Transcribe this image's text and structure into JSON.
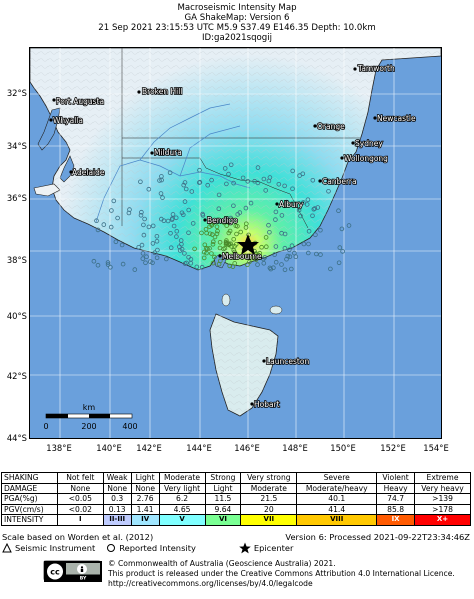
{
  "header": {
    "line1": "Macroseismic Intensity Map",
    "line2": "GA ShakeMap: Version 6",
    "line3": "21 Sep 2021 23:15:53 UTC M5.9 S37.49 E146.35 Depth: 10.0km",
    "line4": "ID:ga2021sqogij"
  },
  "axes": {
    "lat_labels": [
      "32°S",
      "34°S",
      "36°S",
      "38°S",
      "40°S",
      "42°S",
      "44°S"
    ],
    "lon_labels": [
      "138°E",
      "140°E",
      "142°E",
      "144°E",
      "146°E",
      "148°E",
      "150°E",
      "152°E",
      "154°E"
    ]
  },
  "places": [
    "Tamworth",
    "Port Augusta",
    "Broken Hill",
    "Newcastle",
    "Whyalla",
    "Orange",
    "Sydney",
    "Mildura",
    "Wollongong",
    "Adelaide",
    "Canberra",
    "Albury",
    "Bendigo",
    "Melbourne",
    "Launceston",
    "Hobart"
  ],
  "scale_bar": {
    "unit": "km",
    "ticks": [
      "0",
      "200",
      "400"
    ]
  },
  "epicenter": {
    "lat": -37.49,
    "lon": 146.35
  },
  "legend_table": {
    "rows": [
      {
        "label": "SHAKING",
        "cells": [
          "Not felt",
          "Weak",
          "Light",
          "Moderate",
          "Strong",
          "Very strong",
          "Severe",
          "Violent",
          "Extreme"
        ]
      },
      {
        "label": "DAMAGE",
        "cells": [
          "None",
          "None",
          "None",
          "Very light",
          "Light",
          "Moderate",
          "Moderate/heavy",
          "Heavy",
          "Very heavy"
        ]
      },
      {
        "label": "PGA(%g)",
        "cells": [
          "<0.05",
          "0.3",
          "2.76",
          "6.2",
          "11.5",
          "21.5",
          "40.1",
          "74.7",
          ">139"
        ]
      },
      {
        "label": "PGV(cm/s)",
        "cells": [
          "<0.02",
          "0.13",
          "1.41",
          "4.65",
          "9.64",
          "20",
          "41.4",
          "85.8",
          ">178"
        ]
      }
    ],
    "intensity": {
      "label": "INTENSITY",
      "cells": [
        "I",
        "II-III",
        "IV",
        "V",
        "VI",
        "VII",
        "VIII",
        "IX",
        "X+"
      ],
      "colors": [
        "#ffffff",
        "#bfccff",
        "#a0e6ff",
        "#80ffff",
        "#7aff93",
        "#ffff00",
        "#ffc800",
        "#ff5a00",
        "#ff0000"
      ]
    }
  },
  "footer": {
    "scale_note": "Scale based on Worden et al. (2012)",
    "version_note": "Version 6: Processed 2021-09-22T23:34:46Z",
    "seismic_label": "Seismic Instrument",
    "reported_label": "Reported Intensity",
    "epicenter_label": "Epicenter",
    "copyright": "© Commonwealth of Australia (Geoscience Australia) 2021.",
    "license1": "This product is released under the Creative Commons Attribution 4.0 International Licence.",
    "license2": "http://creativecommons.org/licenses/by/4.0/legalcode"
  }
}
